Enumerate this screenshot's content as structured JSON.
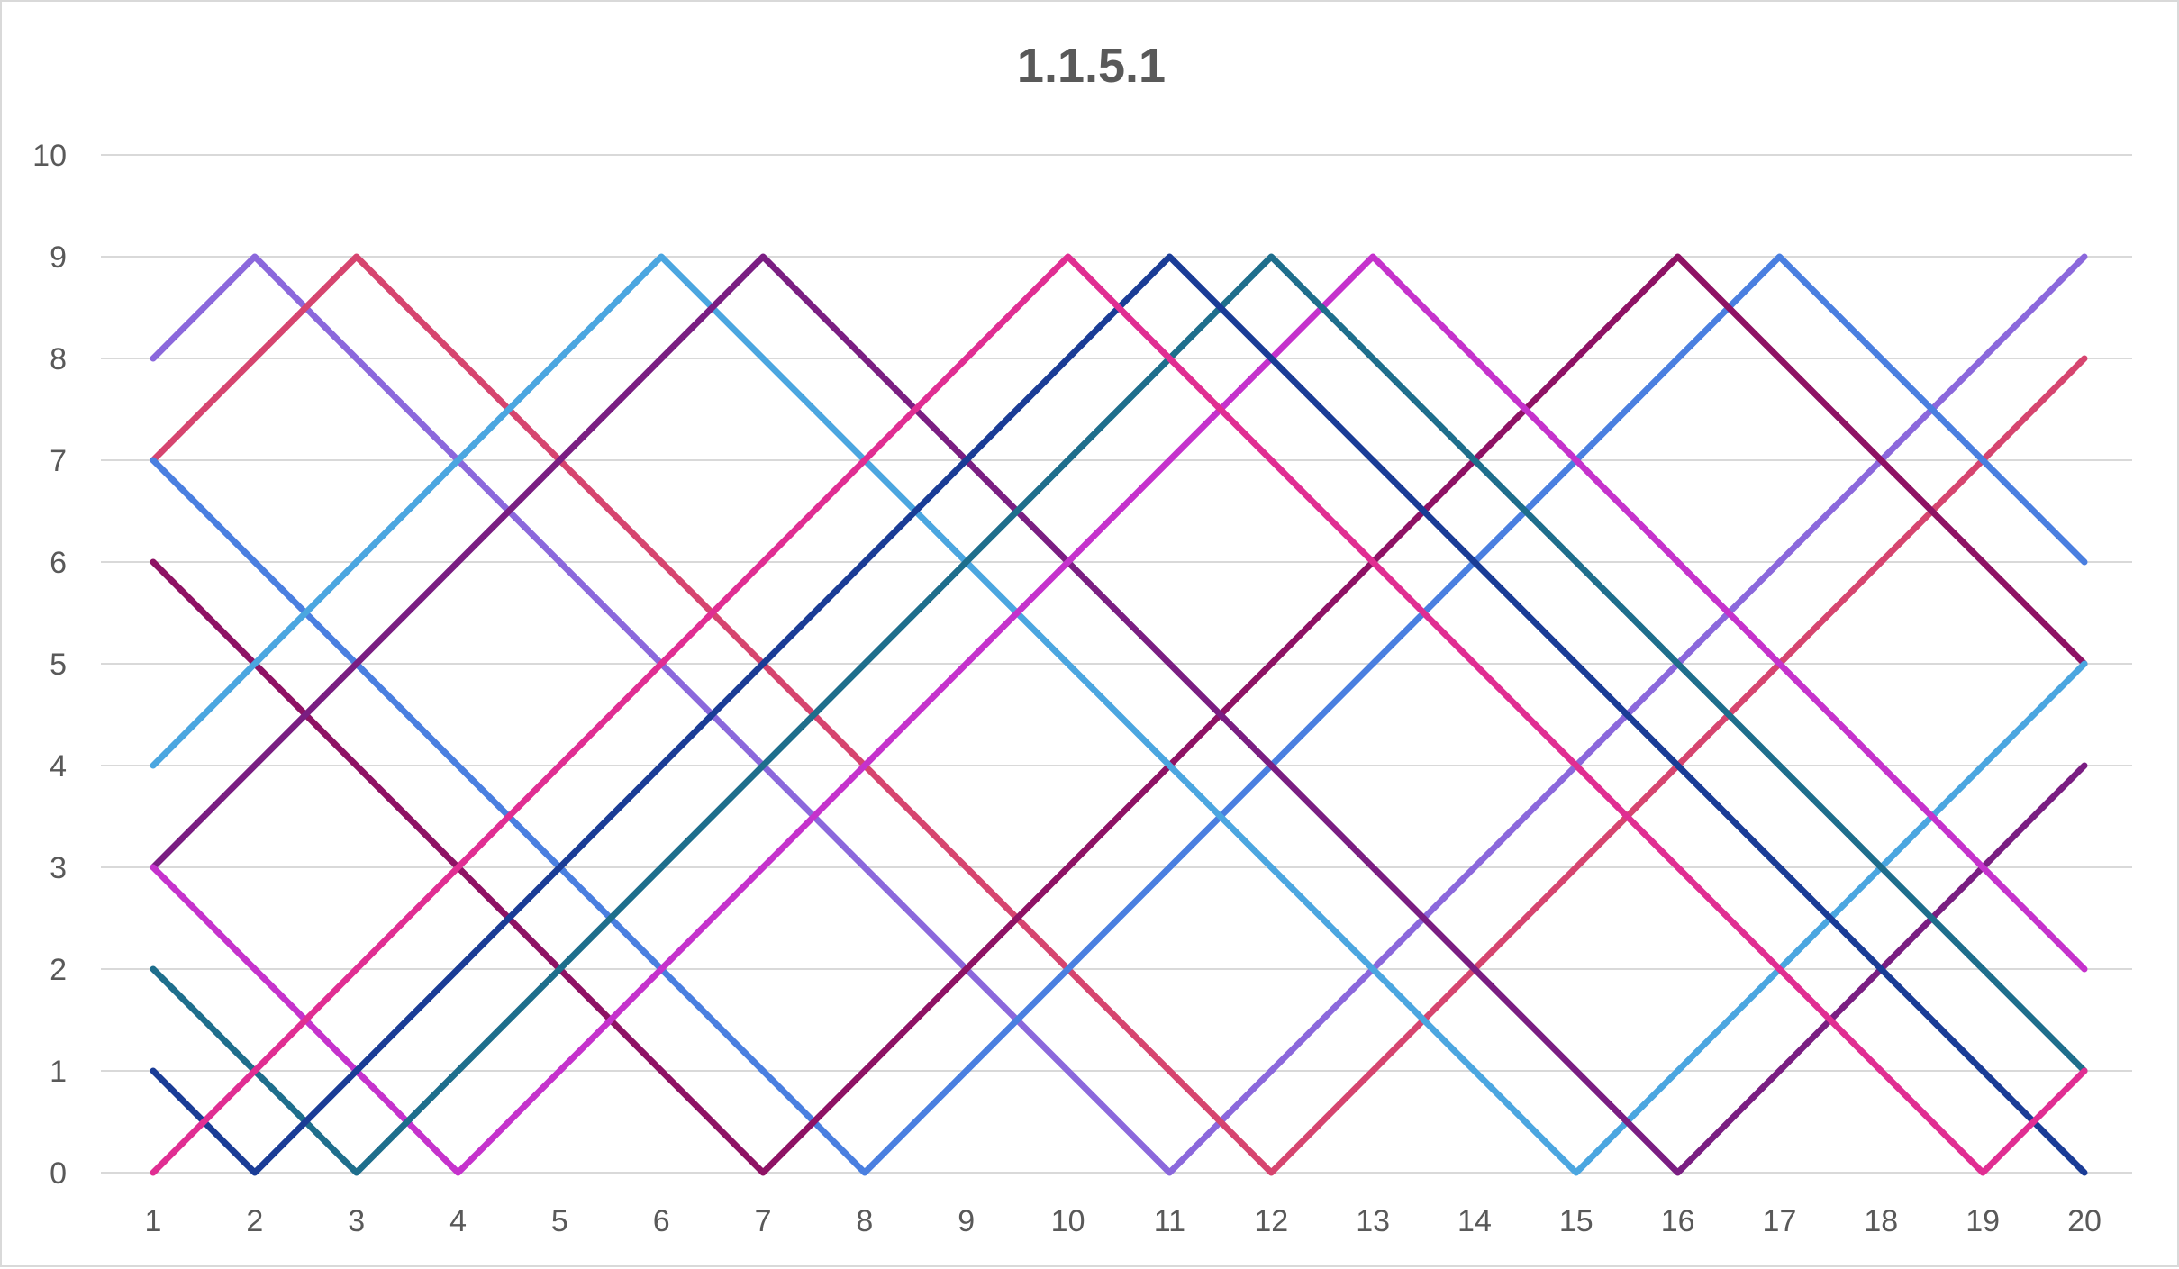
{
  "chart_data": {
    "type": "line",
    "title": "1.1.5.1",
    "xlabel": "",
    "ylabel": "",
    "categories": [
      1,
      2,
      3,
      4,
      5,
      6,
      7,
      8,
      9,
      10,
      11,
      12,
      13,
      14,
      15,
      16,
      17,
      18,
      19,
      20
    ],
    "ylim": [
      0,
      10
    ],
    "yticks": [
      0,
      1,
      2,
      3,
      4,
      5,
      6,
      7,
      8,
      9,
      10
    ],
    "grid": true,
    "legend": "none",
    "series": [
      {
        "color": "#8B68DC",
        "values": [
          8,
          9,
          8,
          7,
          6,
          5,
          4,
          3,
          2,
          1,
          0,
          1,
          2,
          3,
          4,
          5,
          6,
          7,
          8,
          9
        ]
      },
      {
        "color": "#D6456F",
        "values": [
          7,
          8,
          9,
          8,
          7,
          6,
          5,
          4,
          3,
          2,
          1,
          0,
          1,
          2,
          3,
          4,
          5,
          6,
          7,
          8
        ]
      },
      {
        "color": "#4A7FE0",
        "values": [
          7,
          6,
          5,
          4,
          3,
          2,
          1,
          0,
          1,
          2,
          3,
          4,
          5,
          6,
          7,
          8,
          9,
          8,
          7,
          6
        ]
      },
      {
        "color": "#8E1264",
        "values": [
          6,
          5,
          4,
          3,
          2,
          1,
          0,
          1,
          2,
          3,
          4,
          5,
          6,
          7,
          8,
          9,
          8,
          7,
          6,
          5
        ]
      },
      {
        "color": "#4BA6E0",
        "values": [
          4,
          5,
          6,
          7,
          8,
          9,
          8,
          7,
          6,
          5,
          4,
          3,
          2,
          1,
          0,
          1,
          2,
          3,
          4,
          5
        ]
      },
      {
        "color": "#7A1E82",
        "values": [
          3,
          4,
          5,
          6,
          7,
          8,
          9,
          8,
          7,
          6,
          5,
          4,
          3,
          2,
          1,
          0,
          1,
          2,
          3,
          4
        ]
      },
      {
        "color": "#C532CC",
        "values": [
          3,
          2,
          1,
          0,
          1,
          2,
          3,
          4,
          5,
          6,
          7,
          8,
          9,
          8,
          7,
          6,
          5,
          4,
          3,
          2
        ]
      },
      {
        "color": "#1E6E8C",
        "values": [
          2,
          1,
          0,
          1,
          2,
          3,
          4,
          5,
          6,
          7,
          8,
          9,
          8,
          7,
          6,
          5,
          4,
          3,
          2,
          1
        ]
      },
      {
        "color": "#1A3C96",
        "values": [
          1,
          0,
          1,
          2,
          3,
          4,
          5,
          6,
          7,
          8,
          9,
          8,
          7,
          6,
          5,
          4,
          3,
          2,
          1,
          0
        ]
      },
      {
        "color": "#E02E92",
        "values": [
          0,
          1,
          2,
          3,
          4,
          5,
          6,
          7,
          8,
          9,
          8,
          7,
          6,
          5,
          4,
          3,
          2,
          1,
          0,
          1
        ]
      }
    ]
  }
}
